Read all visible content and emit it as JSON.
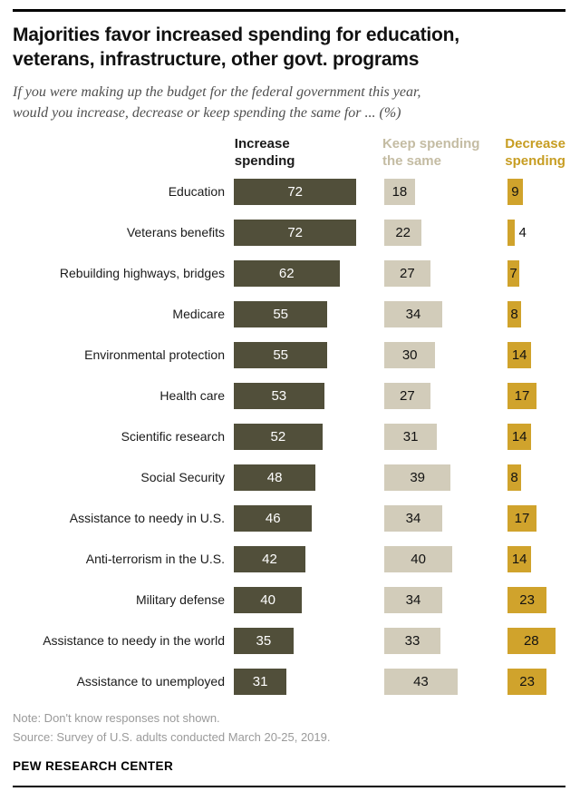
{
  "header": {
    "title": "Majorities favor increased spending for education,\nveterans, infrastructure, other govt. programs",
    "subtitle": "If you were making up the budget for the federal government this year,\nwould you increase, decrease or keep spending the same for ... (%)"
  },
  "columns": {
    "increase_label": "Increase\nspending",
    "keep_label": "Keep spending\nthe same",
    "decrease_label": "Decrease\nspending"
  },
  "colors": {
    "increase_bar": "#514f3a",
    "keep_bar": "#d2ccba",
    "decrease_bar": "#d0a32c",
    "keep_header_text": "#c4bca3",
    "decrease_header_text": "#c79d22"
  },
  "chart_data": {
    "type": "bar",
    "orientation": "horizontal",
    "units": "percent",
    "categories": [
      "Education",
      "Veterans benefits",
      "Rebuilding highways, bridges",
      "Medicare",
      "Environmental protection",
      "Health care",
      "Scientific research",
      "Social Security",
      "Assistance to needy in U.S.",
      "Anti-terrorism in the U.S.",
      "Military defense",
      "Assistance to needy in the world",
      "Assistance to unemployed"
    ],
    "series": [
      {
        "name": "Increase spending",
        "values": [
          72,
          72,
          62,
          55,
          55,
          53,
          52,
          48,
          46,
          42,
          40,
          35,
          31
        ]
      },
      {
        "name": "Keep spending the same",
        "values": [
          18,
          22,
          27,
          34,
          30,
          27,
          31,
          39,
          34,
          40,
          34,
          33,
          43
        ]
      },
      {
        "name": "Decrease spending",
        "values": [
          9,
          4,
          7,
          8,
          14,
          17,
          14,
          8,
          17,
          14,
          23,
          28,
          23
        ]
      }
    ],
    "title": "Majorities favor increased spending for education, veterans, infrastructure, other govt. programs",
    "xlim": [
      0,
      80
    ],
    "grid": false,
    "legend_position": "column-headers"
  },
  "footer": {
    "note": "Note: Don't know responses not shown.",
    "source": "Source: Survey of U.S. adults conducted March 20-25, 2019.",
    "brand": "PEW RESEARCH CENTER"
  }
}
